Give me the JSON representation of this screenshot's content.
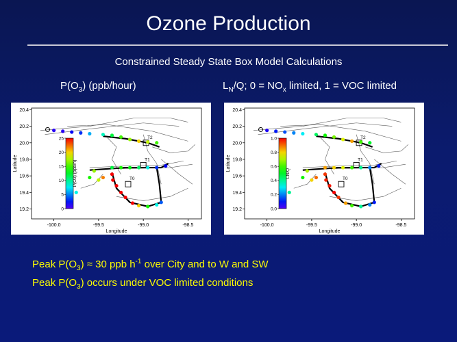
{
  "slide": {
    "title": "Ozone Production",
    "subtitle": "Constrained Steady State Box Model Calculations",
    "left_label": "P(O3)  (ppb/hour)",
    "right_label_parts": [
      "L",
      "N",
      "/Q;   0 = NO",
      "x",
      " limited,  1 = VOC limited"
    ],
    "bullets": [
      [
        "Peak P(O",
        "3",
        ") ≈ 30 ppb h",
        "-1",
        " over City and to W and SW"
      ],
      [
        "Peak P(O",
        "3",
        ") occurs under VOC limited conditions"
      ]
    ]
  },
  "chart_data": [
    {
      "type": "scatter",
      "xlabel": "Longitude",
      "ylabel": "Latitude",
      "xlim": [
        -100.25,
        -98.35
      ],
      "ylim": [
        19.08,
        20.42
      ],
      "xticks": [
        "-100.0",
        "-99.5",
        "-99.0",
        "-98.5"
      ],
      "yticks": [
        "19.2",
        "19.4",
        "19.6",
        "19.8",
        "20.0",
        "20.2",
        "20.4"
      ],
      "site_labels": [
        "T2",
        "T1",
        "T0"
      ],
      "colorbar": {
        "label": "P(O3) (ppb/h)",
        "min": 0,
        "max": 25,
        "ticks": [
          "25",
          "20",
          "15",
          "10",
          "5",
          "0"
        ]
      },
      "series": [
        {
          "points": [
            {
              "x": -100.0,
              "y": 20.15,
              "v": 1
            },
            {
              "x": -99.9,
              "y": 20.14,
              "v": 1
            },
            {
              "x": -99.8,
              "y": 20.13,
              "v": 2
            },
            {
              "x": -99.7,
              "y": 20.12,
              "v": 3
            },
            {
              "x": -99.6,
              "y": 20.11,
              "v": 6
            },
            {
              "x": -99.45,
              "y": 20.1,
              "v": 9
            },
            {
              "x": -99.35,
              "y": 20.09,
              "v": 12
            },
            {
              "x": -99.25,
              "y": 20.07,
              "v": 15
            },
            {
              "x": -99.15,
              "y": 20.04,
              "v": 17
            },
            {
              "x": -99.05,
              "y": 20.02,
              "v": 20
            },
            {
              "x": -98.95,
              "y": 20.01,
              "v": 18
            },
            {
              "x": -98.85,
              "y": 20.0,
              "v": 15
            },
            {
              "x": -99.75,
              "y": 19.4,
              "v": 8
            },
            {
              "x": -99.6,
              "y": 19.58,
              "v": 14
            },
            {
              "x": -99.55,
              "y": 19.66,
              "v": 17
            },
            {
              "x": -99.35,
              "y": 19.7,
              "v": 12
            },
            {
              "x": -99.25,
              "y": 19.7,
              "v": 14
            },
            {
              "x": -99.15,
              "y": 19.7,
              "v": 13
            },
            {
              "x": -99.05,
              "y": 19.7,
              "v": 11
            },
            {
              "x": -98.95,
              "y": 19.7,
              "v": 8
            },
            {
              "x": -98.85,
              "y": 19.7,
              "v": 3
            },
            {
              "x": -98.75,
              "y": 19.72,
              "v": 2
            },
            {
              "x": -99.35,
              "y": 19.62,
              "v": 26
            },
            {
              "x": -99.34,
              "y": 19.55,
              "v": 28
            },
            {
              "x": -99.3,
              "y": 19.48,
              "v": 29
            },
            {
              "x": -99.25,
              "y": 19.4,
              "v": 30
            },
            {
              "x": -99.2,
              "y": 19.34,
              "v": 28
            },
            {
              "x": -99.12,
              "y": 19.27,
              "v": 25
            },
            {
              "x": -99.05,
              "y": 19.24,
              "v": 20
            },
            {
              "x": -98.95,
              "y": 19.23,
              "v": 14
            },
            {
              "x": -98.85,
              "y": 19.25,
              "v": 8
            },
            {
              "x": -98.8,
              "y": 19.28,
              "v": 4
            },
            {
              "x": -99.45,
              "y": 19.58,
              "v": 22
            },
            {
              "x": -99.5,
              "y": 19.55,
              "v": 18
            }
          ]
        }
      ]
    },
    {
      "type": "scatter",
      "xlabel": "Longitude",
      "ylabel": "LN/Q",
      "xlim": [
        -100.25,
        -98.35
      ],
      "ylim": [
        19.08,
        20.42
      ],
      "xticks": [
        "-100.0",
        "-99.5",
        "-99.0",
        "-98.5"
      ],
      "yticks": [
        "19.2",
        "19.4",
        "19.6",
        "19.8",
        "20.0",
        "20.2",
        "20.4"
      ],
      "site_labels": [
        "T2",
        "T1",
        "T0"
      ],
      "colorbar": {
        "label": "LN/Q",
        "min": 0,
        "max": 1,
        "ticks": [
          "1.0",
          "0.8",
          "0.6",
          "0.4",
          "0.2",
          "0.0"
        ]
      },
      "series": [
        {
          "points": [
            {
              "x": -100.0,
              "y": 20.15,
              "v": 0.05
            },
            {
              "x": -99.9,
              "y": 20.14,
              "v": 0.1
            },
            {
              "x": -99.8,
              "y": 20.13,
              "v": 0.15
            },
            {
              "x": -99.7,
              "y": 20.12,
              "v": 0.2
            },
            {
              "x": -99.6,
              "y": 20.11,
              "v": 0.3
            },
            {
              "x": -99.45,
              "y": 20.1,
              "v": 0.45
            },
            {
              "x": -99.35,
              "y": 20.09,
              "v": 0.55
            },
            {
              "x": -99.25,
              "y": 20.07,
              "v": 0.65
            },
            {
              "x": -99.15,
              "y": 20.04,
              "v": 0.75
            },
            {
              "x": -99.05,
              "y": 20.02,
              "v": 0.85
            },
            {
              "x": -98.95,
              "y": 20.01,
              "v": 0.6
            },
            {
              "x": -98.85,
              "y": 20.0,
              "v": 0.5
            },
            {
              "x": -99.75,
              "y": 19.4,
              "v": 0.4
            },
            {
              "x": -99.6,
              "y": 19.58,
              "v": 0.55
            },
            {
              "x": -99.55,
              "y": 19.66,
              "v": 0.7
            },
            {
              "x": -99.35,
              "y": 19.7,
              "v": 0.85
            },
            {
              "x": -99.25,
              "y": 19.7,
              "v": 0.8
            },
            {
              "x": -99.15,
              "y": 19.7,
              "v": 0.75
            },
            {
              "x": -99.05,
              "y": 19.7,
              "v": 0.6
            },
            {
              "x": -98.95,
              "y": 19.7,
              "v": 0.4
            },
            {
              "x": -98.85,
              "y": 19.7,
              "v": 0.2
            },
            {
              "x": -98.75,
              "y": 19.72,
              "v": 0.1
            },
            {
              "x": -99.35,
              "y": 19.62,
              "v": 0.95
            },
            {
              "x": -99.34,
              "y": 19.55,
              "v": 0.97
            },
            {
              "x": -99.3,
              "y": 19.48,
              "v": 0.98
            },
            {
              "x": -99.25,
              "y": 19.4,
              "v": 1.0
            },
            {
              "x": -99.2,
              "y": 19.34,
              "v": 0.95
            },
            {
              "x": -99.12,
              "y": 19.27,
              "v": 0.85
            },
            {
              "x": -99.05,
              "y": 19.24,
              "v": 0.6
            },
            {
              "x": -98.95,
              "y": 19.23,
              "v": 0.4
            },
            {
              "x": -98.85,
              "y": 19.25,
              "v": 0.2
            },
            {
              "x": -98.8,
              "y": 19.28,
              "v": 0.1
            },
            {
              "x": -99.45,
              "y": 19.58,
              "v": 0.9
            },
            {
              "x": -99.5,
              "y": 19.55,
              "v": 0.8
            }
          ]
        }
      ]
    }
  ]
}
